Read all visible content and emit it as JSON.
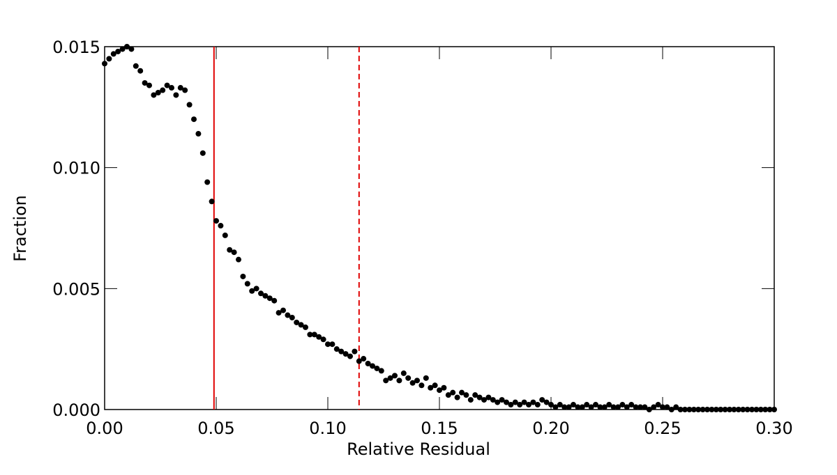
{
  "chart_data": {
    "type": "scatter",
    "xlabel": "Relative Residual",
    "ylabel": "Fraction",
    "xlim": [
      0,
      0.3
    ],
    "ylim": [
      0,
      0.015
    ],
    "xticks": [
      {
        "value": 0,
        "label": "0.00"
      },
      {
        "value": 0.05,
        "label": "0.05"
      },
      {
        "value": 0.1,
        "label": "0.10"
      },
      {
        "value": 0.15,
        "label": "0.15"
      },
      {
        "value": 0.2,
        "label": "0.20"
      },
      {
        "value": 0.25,
        "label": "0.25"
      },
      {
        "value": 0.3,
        "label": "0.30"
      }
    ],
    "yticks": [
      {
        "value": 0,
        "label": "0.000"
      },
      {
        "value": 0.005,
        "label": "0.005"
      },
      {
        "value": 0.01,
        "label": "0.010"
      },
      {
        "value": 0.015,
        "label": "0.015"
      }
    ],
    "color": "#000000",
    "vlines": [
      {
        "x": 0.049,
        "color": "#e00000",
        "style": "solid"
      },
      {
        "x": 0.114,
        "color": "#e00000",
        "style": "dashed"
      }
    ],
    "x": [
      0,
      0.002,
      0.004,
      0.006,
      0.008,
      0.01,
      0.012,
      0.014,
      0.016,
      0.018,
      0.02,
      0.022,
      0.024,
      0.026,
      0.028,
      0.03,
      0.032,
      0.034,
      0.036,
      0.038,
      0.04,
      0.042,
      0.044,
      0.046,
      0.048,
      0.05,
      0.052,
      0.054,
      0.056,
      0.058,
      0.06,
      0.062,
      0.064,
      0.066,
      0.068,
      0.07,
      0.072,
      0.074,
      0.076,
      0.078,
      0.08,
      0.082,
      0.084,
      0.086,
      0.088,
      0.09,
      0.092,
      0.094,
      0.096,
      0.098,
      0.1,
      0.102,
      0.104,
      0.106,
      0.108,
      0.11,
      0.112,
      0.114,
      0.116,
      0.118,
      0.12,
      0.122,
      0.124,
      0.126,
      0.128,
      0.13,
      0.132,
      0.134,
      0.136,
      0.138,
      0.14,
      0.142,
      0.144,
      0.146,
      0.148,
      0.15,
      0.152,
      0.154,
      0.156,
      0.158,
      0.16,
      0.162,
      0.164,
      0.166,
      0.168,
      0.17,
      0.172,
      0.174,
      0.176,
      0.178,
      0.18,
      0.182,
      0.184,
      0.186,
      0.188,
      0.19,
      0.192,
      0.194,
      0.196,
      0.198,
      0.2,
      0.202,
      0.204,
      0.206,
      0.208,
      0.21,
      0.212,
      0.214,
      0.216,
      0.218,
      0.22,
      0.222,
      0.224,
      0.226,
      0.228,
      0.23,
      0.232,
      0.234,
      0.236,
      0.238,
      0.24,
      0.242,
      0.244,
      0.246,
      0.248,
      0.25,
      0.252,
      0.254,
      0.256,
      0.258,
      0.26,
      0.262,
      0.264,
      0.266,
      0.268,
      0.27,
      0.272,
      0.274,
      0.276,
      0.278,
      0.28,
      0.282,
      0.284,
      0.286,
      0.288,
      0.29,
      0.292,
      0.294,
      0.296,
      0.298,
      0.3
    ],
    "values": [
      0.0143,
      0.0145,
      0.0147,
      0.0148,
      0.0149,
      0.015,
      0.0149,
      0.0142,
      0.014,
      0.0135,
      0.0134,
      0.013,
      0.0131,
      0.0132,
      0.0134,
      0.0133,
      0.013,
      0.0133,
      0.0132,
      0.0126,
      0.012,
      0.0114,
      0.0106,
      0.0094,
      0.0086,
      0.0078,
      0.0076,
      0.0072,
      0.0066,
      0.0065,
      0.0062,
      0.0055,
      0.0052,
      0.0049,
      0.005,
      0.0048,
      0.0047,
      0.0046,
      0.0045,
      0.004,
      0.0041,
      0.0039,
      0.0038,
      0.0036,
      0.0035,
      0.0034,
      0.0031,
      0.0031,
      0.003,
      0.0029,
      0.0027,
      0.0027,
      0.0025,
      0.0024,
      0.0023,
      0.0022,
      0.0024,
      0.002,
      0.0021,
      0.0019,
      0.0018,
      0.0017,
      0.0016,
      0.0012,
      0.0013,
      0.0014,
      0.0012,
      0.0015,
      0.0013,
      0.0011,
      0.0012,
      0.001,
      0.0013,
      0.0009,
      0.001,
      0.0008,
      0.0009,
      0.0006,
      0.0007,
      0.0005,
      0.0007,
      0.0006,
      0.0004,
      0.0006,
      0.0005,
      0.0004,
      0.0005,
      0.0004,
      0.0003,
      0.0004,
      0.0003,
      0.0002,
      0.0003,
      0.0002,
      0.0003,
      0.0002,
      0.0003,
      0.0002,
      0.0004,
      0.0003,
      0.0002,
      0.0001,
      0.0002,
      0.0001,
      0.0001,
      0.0002,
      0.0001,
      0.0001,
      0.0002,
      0.0001,
      0.0002,
      0.0001,
      0.0001,
      0.0002,
      0.0001,
      0.0001,
      0.0002,
      0.0001,
      0.0002,
      0.0001,
      0.0001,
      0.0001,
      0,
      0.0001,
      0.0002,
      0.0001,
      0.0001,
      0,
      0.0001,
      0,
      0,
      0,
      0,
      0,
      0,
      0,
      0,
      0,
      0,
      0,
      0,
      0,
      0,
      0,
      0,
      0,
      0,
      0,
      0,
      0,
      0
    ]
  }
}
